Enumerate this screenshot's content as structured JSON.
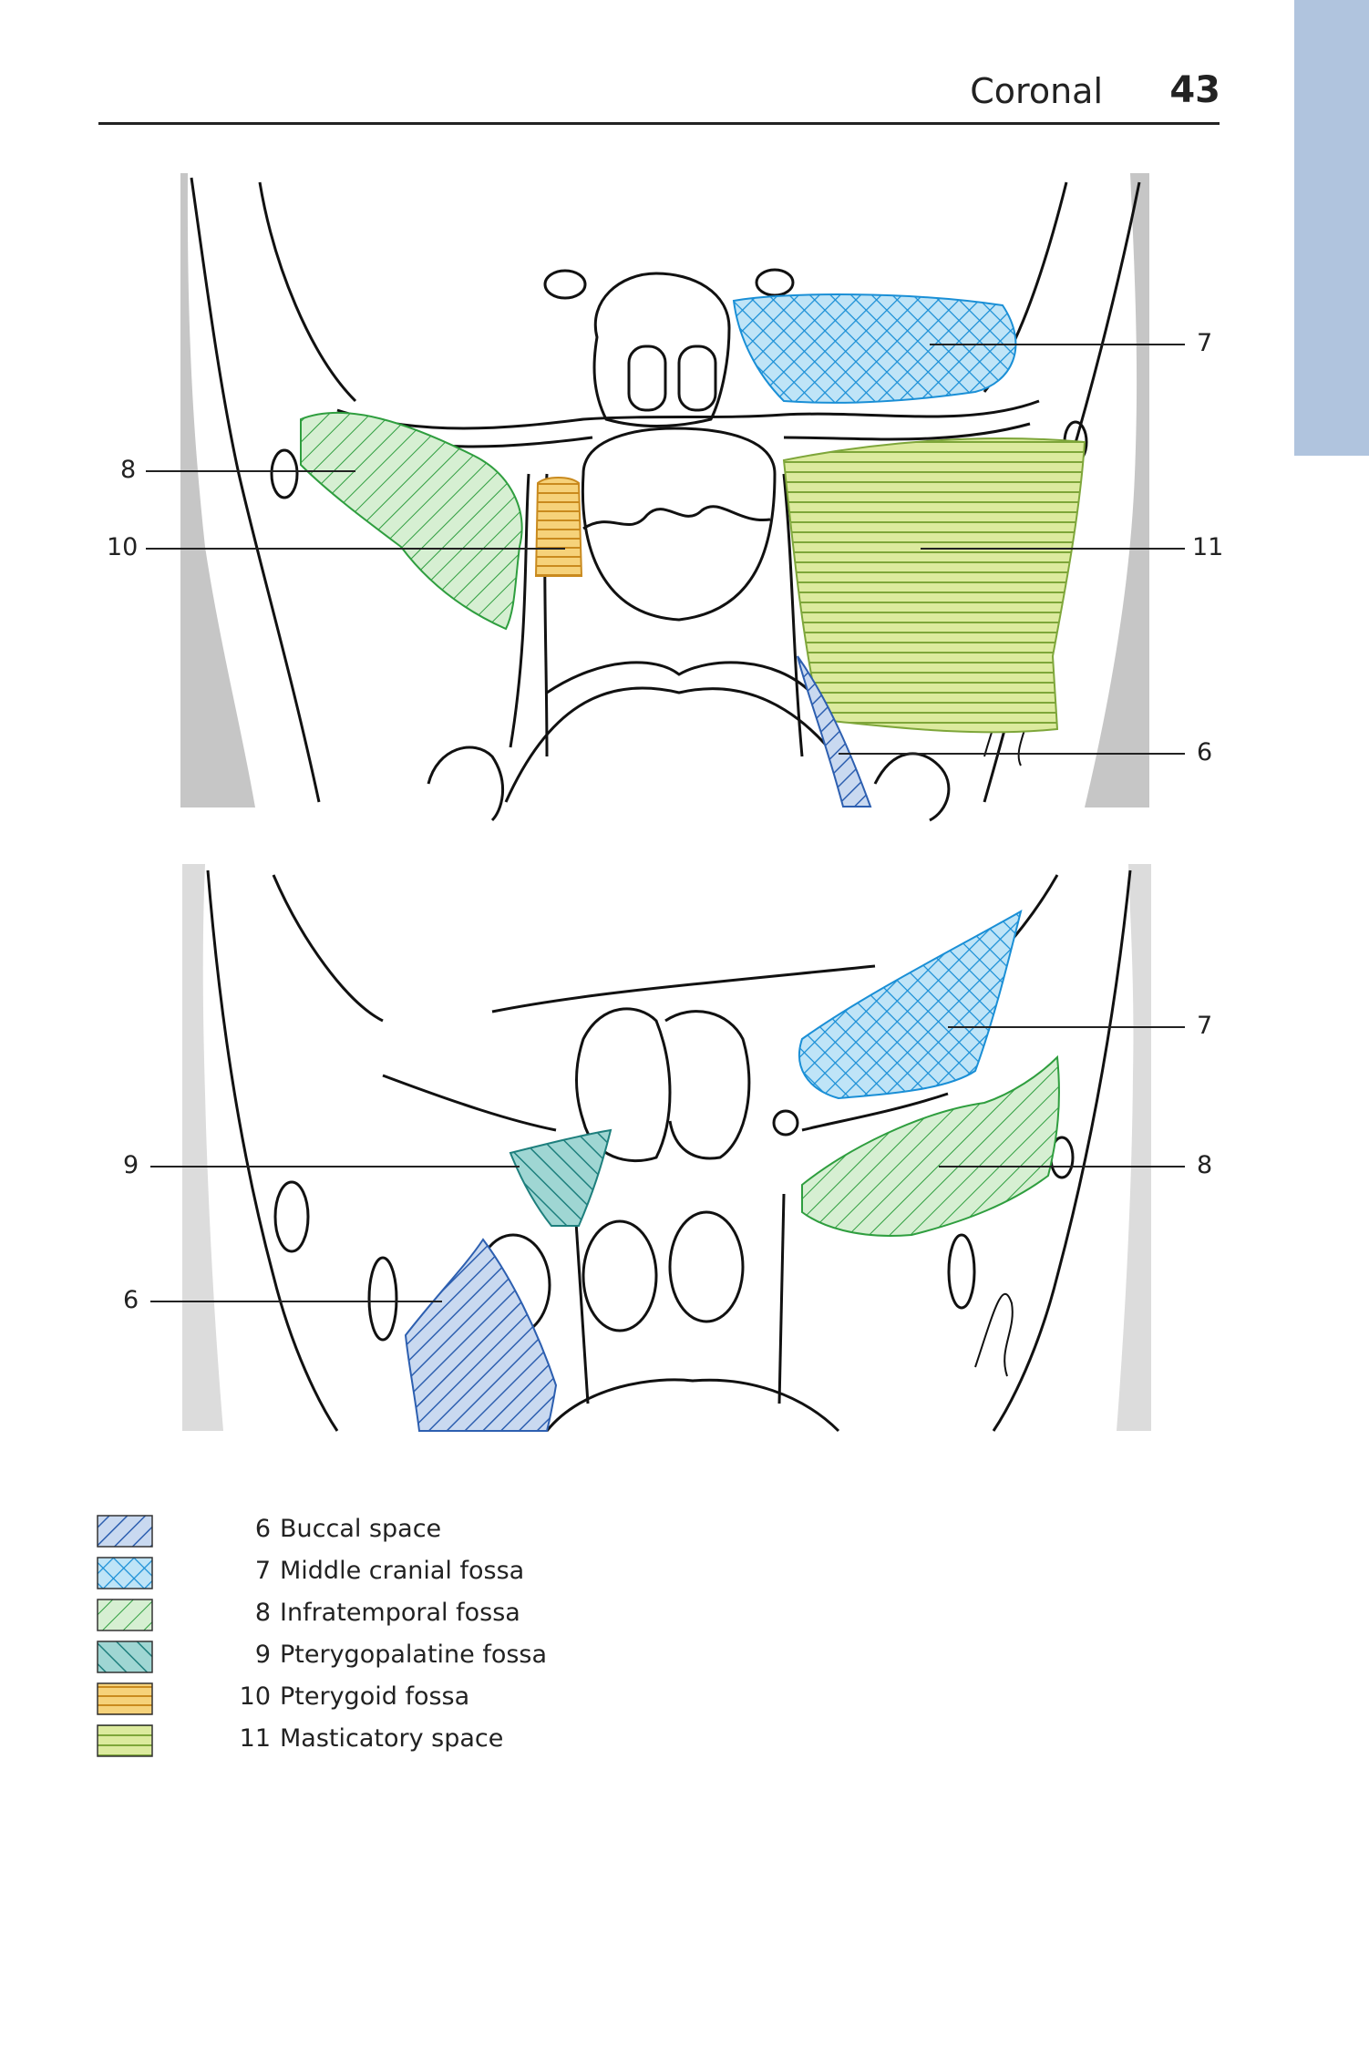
{
  "header": {
    "title": "Coronal",
    "page_number": "43"
  },
  "colors": {
    "buccal": "#5b86c9",
    "middle_cranial": "#2f9ad8",
    "infratemporal": "#3aa84a",
    "pterygopalatine": "#2f9c9a",
    "pterygoid": "#e9a93a",
    "masticatory": "#a8c850",
    "tab": "#b0c4de",
    "gray_bg": "#c4c4c4"
  },
  "top_figure": {
    "labels": {
      "l7": "7",
      "l8": "8",
      "l10": "10",
      "l11": "11",
      "l6": "6"
    }
  },
  "bottom_figure": {
    "labels": {
      "l7": "7",
      "l9": "9",
      "l8": "8",
      "l6": "6"
    }
  },
  "legend": {
    "items": [
      {
        "num": "6",
        "text": "Buccal space"
      },
      {
        "num": "7",
        "text": "Middle cranial fossa"
      },
      {
        "num": "8",
        "text": "Infratemporal fossa"
      },
      {
        "num": "9",
        "text": "Pterygopalatine fossa"
      },
      {
        "num": "10",
        "text": "Pterygoid fossa"
      },
      {
        "num": "11",
        "text": "Masticatory space"
      }
    ]
  }
}
